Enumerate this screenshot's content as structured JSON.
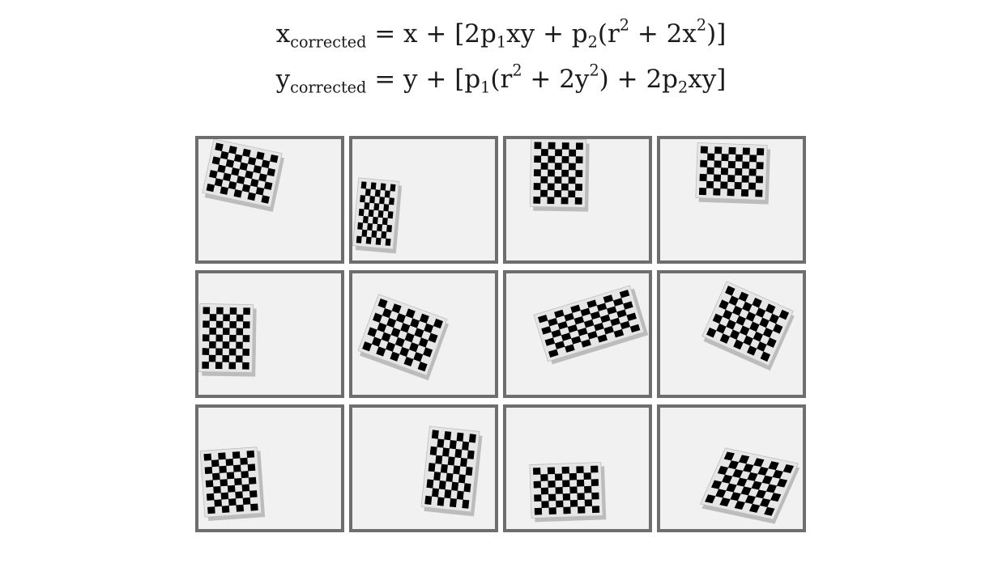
{
  "equations": {
    "line1": {
      "lhs_var": "x",
      "lhs_sub": "corrected",
      "rhs_a": " = x + [2p",
      "sub1": "1",
      "rhs_b": "xy + p",
      "sub2": "2",
      "rhs_c": "(r",
      "sup1": "2",
      "rhs_d": " + 2x",
      "sup2": "2",
      "rhs_e": ")]"
    },
    "line2": {
      "lhs_var": "y",
      "lhs_sub": "corrected",
      "rhs_a": " = y + [p",
      "sub1": "1",
      "rhs_b": "(r",
      "sup1": "2",
      "rhs_c": " + 2y",
      "sup2": "2",
      "rhs_d": ") + 2p",
      "sub2": "2",
      "rhs_e": "xy]"
    }
  },
  "grid": {
    "rows": 3,
    "cols": 4,
    "frame_color": "#6e6e6e",
    "cell_background": "#f1f1f1",
    "board_square_color": "#000000",
    "board_paper_color": "#e6e6e6"
  }
}
